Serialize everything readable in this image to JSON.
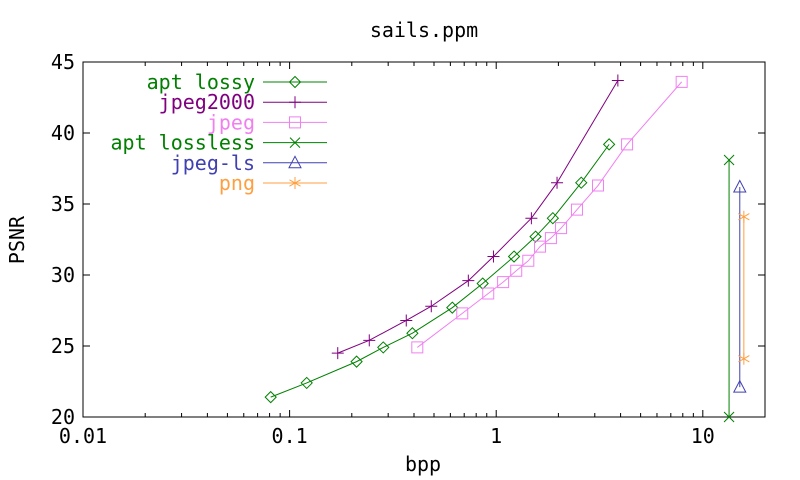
{
  "chart_data": {
    "type": "line",
    "title": "sails.ppm",
    "xlabel": "bpp",
    "ylabel": "PSNR",
    "x_scale": "log",
    "xlim": [
      0.01,
      20
    ],
    "ylim": [
      20,
      45
    ],
    "grid": false,
    "background": "#ffffff",
    "axis_color": "#000000",
    "legend_position": "top-left-inside",
    "x_ticks": [
      {
        "value": 0.01,
        "label": "0.01"
      },
      {
        "value": 0.1,
        "label": "0.1"
      },
      {
        "value": 1,
        "label": "1"
      },
      {
        "value": 10,
        "label": "10"
      }
    ],
    "y_ticks": [
      {
        "value": 20,
        "label": "20"
      },
      {
        "value": 25,
        "label": "25"
      },
      {
        "value": 30,
        "label": "30"
      },
      {
        "value": 35,
        "label": "35"
      },
      {
        "value": 40,
        "label": "40"
      },
      {
        "value": 45,
        "label": "45"
      }
    ],
    "series": [
      {
        "name": "apt lossy",
        "color": "#008000",
        "marker": "diamond",
        "points": [
          [
            0.081,
            21.4
          ],
          [
            0.121,
            22.4
          ],
          [
            0.211,
            23.9
          ],
          [
            0.284,
            24.9
          ],
          [
            0.393,
            25.9
          ],
          [
            0.613,
            27.7
          ],
          [
            0.86,
            29.4
          ],
          [
            1.22,
            31.3
          ],
          [
            1.55,
            32.7
          ],
          [
            1.88,
            34.0
          ],
          [
            2.58,
            36.5
          ],
          [
            3.52,
            39.2
          ]
        ]
      },
      {
        "name": "jpeg2000",
        "color": "#800080",
        "marker": "plus",
        "points": [
          [
            0.171,
            24.5
          ],
          [
            0.243,
            25.4
          ],
          [
            0.367,
            26.8
          ],
          [
            0.485,
            27.8
          ],
          [
            0.733,
            29.6
          ],
          [
            0.97,
            31.3
          ],
          [
            1.48,
            34.0
          ],
          [
            1.97,
            36.5
          ],
          [
            3.88,
            43.7
          ]
        ]
      },
      {
        "name": "jpeg",
        "color": "#f080f0",
        "marker": "square",
        "points": [
          [
            0.415,
            24.9
          ],
          [
            0.685,
            27.3
          ],
          [
            0.915,
            28.7
          ],
          [
            1.08,
            29.5
          ],
          [
            1.25,
            30.3
          ],
          [
            1.43,
            31.0
          ],
          [
            1.63,
            32.0
          ],
          [
            1.84,
            32.6
          ],
          [
            2.06,
            33.3
          ],
          [
            2.46,
            34.6
          ],
          [
            3.11,
            36.3
          ],
          [
            4.3,
            39.2
          ],
          [
            7.9,
            43.6
          ]
        ]
      },
      {
        "name": "apt lossless",
        "color": "#008000",
        "marker": "x",
        "points": [
          [
            13.4,
            20.0
          ],
          [
            13.4,
            38.1
          ]
        ]
      },
      {
        "name": "jpeg-ls",
        "color": "#4040b0",
        "marker": "triangle",
        "points": [
          [
            15.1,
            22.1
          ],
          [
            15.1,
            36.2
          ]
        ]
      },
      {
        "name": "png",
        "color": "#ff9f40",
        "marker": "asterisk",
        "points": [
          [
            15.8,
            24.1
          ],
          [
            15.8,
            34.1
          ]
        ]
      }
    ]
  }
}
